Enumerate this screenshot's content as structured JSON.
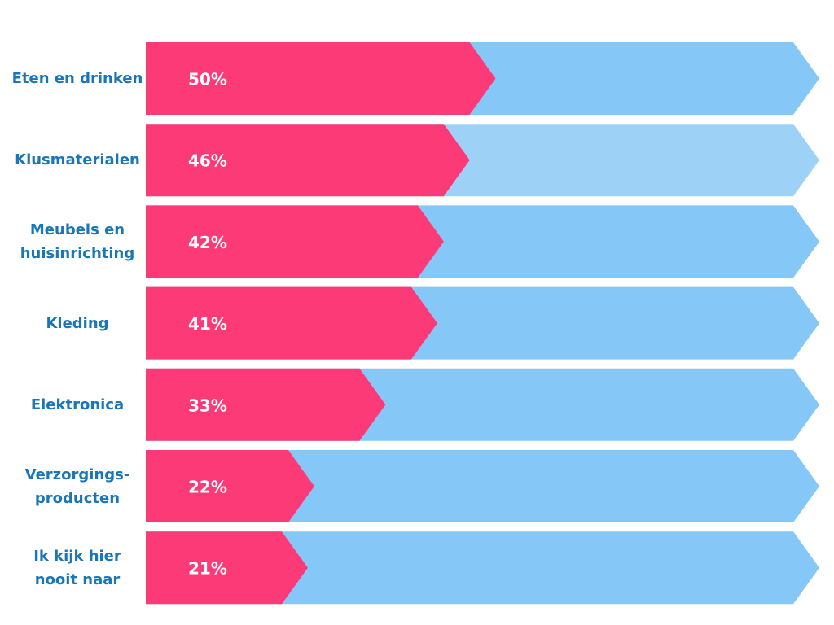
{
  "colors": {
    "value_bar": "#fc3a78",
    "track": "#85c7f6",
    "track_highlight": "#9dd1f6",
    "label_text": "#1a76b7",
    "value_text": "#ffffff"
  },
  "chart_data": {
    "type": "bar",
    "orientation": "horizontal",
    "categories": [
      "Eten en drinken",
      "Klusmaterialen",
      "Meubels en huisinrichting",
      "Kleding",
      "Elektronica",
      "Verzorgings-producten",
      "Ik kijk hier nooit naar"
    ],
    "values": [
      50,
      46,
      42,
      41,
      33,
      22,
      21
    ],
    "value_labels": [
      "50%",
      "46%",
      "42%",
      "41%",
      "33%",
      "22%",
      "21%"
    ],
    "category_label_lines": [
      [
        "Eten en drinken"
      ],
      [
        "Klusmaterialen"
      ],
      [
        "Meubels en",
        "huisinrichting"
      ],
      [
        "Kleding"
      ],
      [
        "Elektronica"
      ],
      [
        "Verzorgings-",
        "producten"
      ],
      [
        "Ik kijk hier",
        "nooit naar"
      ]
    ],
    "unit": "%",
    "highlighted_category": "Klusmaterialen",
    "title": "",
    "xlabel": "",
    "ylabel": "",
    "grid": false,
    "legend": "none"
  }
}
